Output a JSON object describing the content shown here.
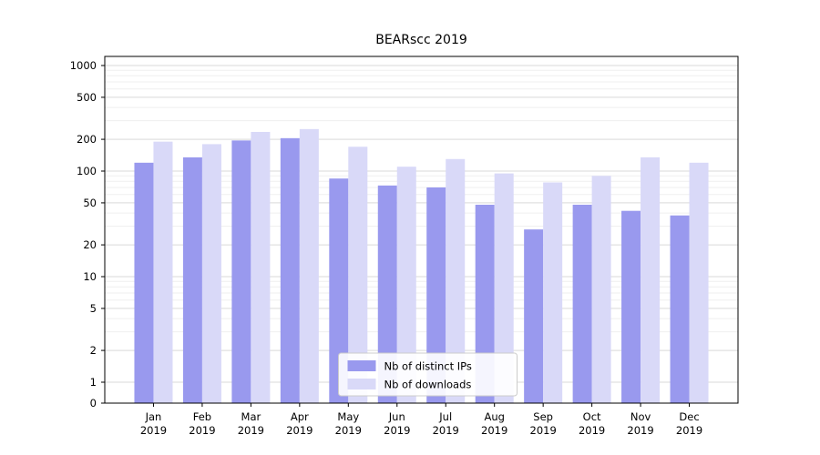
{
  "title": "BEARscc 2019",
  "colors": {
    "background": "#ffffff",
    "axis": "#000000",
    "grid_major": "#d9d9d9",
    "grid_minor": "#efefef",
    "tick_label": "#000000",
    "legend_border": "#cccccc",
    "legend_background": "#ffffff",
    "ips_bar": "#9999ee",
    "downloads_bar": "#d9d9f8"
  },
  "chart_data": {
    "type": "bar",
    "title": "BEARscc 2019",
    "year": "2019",
    "categories": [
      "Jan",
      "Feb",
      "Mar",
      "Apr",
      "May",
      "Jun",
      "Jul",
      "Aug",
      "Sep",
      "Oct",
      "Nov",
      "Dec"
    ],
    "series": [
      {
        "name": "Nb of distinct IPs",
        "color": "#9999ee",
        "values": [
          120,
          135,
          195,
          205,
          85,
          73,
          70,
          48,
          28,
          48,
          42,
          38
        ]
      },
      {
        "name": "Nb of downloads",
        "color": "#d9d9f8",
        "values": [
          190,
          180,
          235,
          250,
          170,
          110,
          130,
          95,
          78,
          90,
          135,
          120
        ]
      }
    ],
    "xlabel": "",
    "ylabel": "",
    "yscale": "symlog",
    "yticks": [
      0,
      1,
      2,
      5,
      10,
      20,
      50,
      100,
      200,
      500,
      1000
    ],
    "ylim": [
      0,
      1200
    ],
    "grid": true,
    "legend_position": "lower center"
  }
}
